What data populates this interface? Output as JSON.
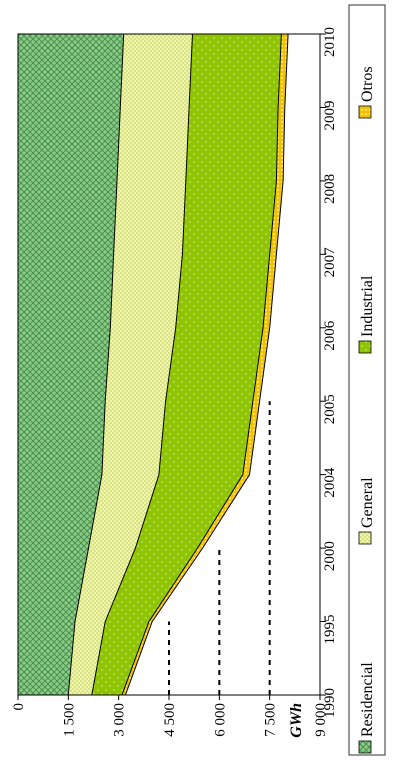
{
  "chart_data": {
    "type": "area",
    "stacked": true,
    "orientation": "rotated-90-ccw",
    "x": [
      "1990",
      "1995",
      "2000",
      "2004",
      "2005",
      "2006",
      "2007",
      "2008",
      "2009",
      "2010"
    ],
    "ylabel": "GWh",
    "ylim": [
      0,
      9000
    ],
    "yticks": [
      "0",
      "1 500",
      "3 000",
      "4 500",
      "6 000",
      "7 500",
      "9 000"
    ],
    "series": [
      {
        "name": "Residencial",
        "values": [
          1500,
          1700,
          2100,
          2500,
          2600,
          2750,
          2850,
          2950,
          3050,
          3150
        ]
      },
      {
        "name": "General",
        "values": [
          700,
          900,
          1400,
          1700,
          1800,
          1950,
          2050,
          2050,
          2050,
          2050
        ]
      },
      {
        "name": "Industrial",
        "values": [
          900,
          1300,
          1850,
          2500,
          2600,
          2600,
          2600,
          2700,
          2650,
          2650
        ]
      },
      {
        "name": "Otros",
        "values": [
          100,
          100,
          150,
          200,
          200,
          200,
          200,
          200,
          200,
          200
        ]
      }
    ],
    "reference_lines": [
      {
        "from": "1990",
        "to": "1995",
        "value": 4500
      },
      {
        "from": "1990",
        "to": "2000",
        "value": 6000
      },
      {
        "from": "1990",
        "to": "2005",
        "value": 7500
      }
    ],
    "grid": false,
    "legend": "bottom"
  },
  "colors": {
    "Residencial": "#7fbf7f",
    "General": "#f0f5a0",
    "Industrial": "#8fc400",
    "Otros": "#f2c200"
  }
}
